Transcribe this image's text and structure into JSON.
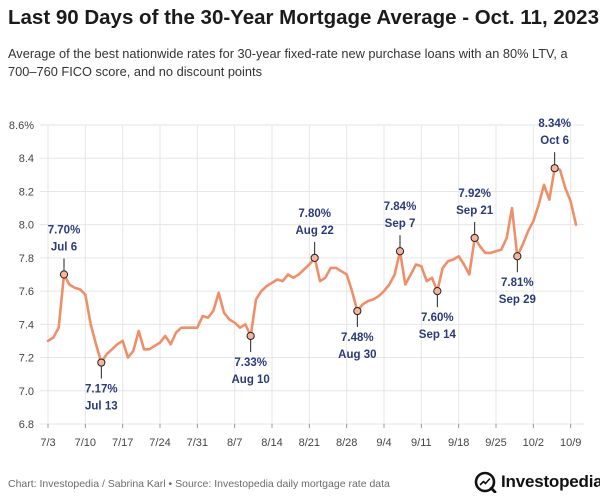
{
  "page": {
    "title": "Last 90 Days of the 30-Year Mortgage Average - Oct. 11, 2023",
    "subtitle": "Average of the best nationwide rates for 30-year fixed-rate new purchase loans with an 80% LTV, a 700–760 FICO score, and no discount points",
    "source": "Chart: Investopedia / Sabrina Karl • Source: Investopedia daily mortgage rate data",
    "brand": "Investopedia"
  },
  "colors": {
    "line": "#ef8f6a",
    "marker_fill": "#f4b59c",
    "label": "#2b3a7a",
    "grid": "#e6e6e6"
  },
  "chart_data": {
    "type": "line",
    "title": "Last 90 Days of the 30-Year Mortgage Average - Oct. 11, 2023",
    "xlabel": "",
    "ylabel": "",
    "xlim": [
      "2023-07-03",
      "2023-10-10"
    ],
    "ylim": [
      6.8,
      8.6
    ],
    "grid": true,
    "x_ticks": [
      "7/3",
      "7/10",
      "7/17",
      "7/24",
      "7/31",
      "8/7",
      "8/14",
      "8/21",
      "8/28",
      "9/4",
      "9/11",
      "9/18",
      "9/25",
      "10/2",
      "10/9"
    ],
    "y_ticks": [
      "6.8",
      "7.0",
      "7.2",
      "7.4",
      "7.6",
      "7.8",
      "8.0",
      "8.2",
      "8.4",
      "8.6%"
    ],
    "series": [
      {
        "x": [
          "2023-07-03",
          "2023-07-04",
          "2023-07-05",
          "2023-07-06",
          "2023-07-07",
          "2023-07-08",
          "2023-07-09",
          "2023-07-10",
          "2023-07-11",
          "2023-07-12",
          "2023-07-13",
          "2023-07-14",
          "2023-07-15",
          "2023-07-16",
          "2023-07-17",
          "2023-07-18",
          "2023-07-19",
          "2023-07-20",
          "2023-07-21",
          "2023-07-22",
          "2023-07-23",
          "2023-07-24",
          "2023-07-25",
          "2023-07-26",
          "2023-07-27",
          "2023-07-28",
          "2023-07-29",
          "2023-07-30",
          "2023-07-31",
          "2023-08-01",
          "2023-08-02",
          "2023-08-03",
          "2023-08-04",
          "2023-08-05",
          "2023-08-06",
          "2023-08-07",
          "2023-08-08",
          "2023-08-09",
          "2023-08-10",
          "2023-08-11",
          "2023-08-12",
          "2023-08-13",
          "2023-08-14",
          "2023-08-15",
          "2023-08-16",
          "2023-08-17",
          "2023-08-18",
          "2023-08-19",
          "2023-08-20",
          "2023-08-21",
          "2023-08-22",
          "2023-08-23",
          "2023-08-24",
          "2023-08-25",
          "2023-08-26",
          "2023-08-27",
          "2023-08-28",
          "2023-08-29",
          "2023-08-30",
          "2023-08-31",
          "2023-09-01",
          "2023-09-02",
          "2023-09-03",
          "2023-09-04",
          "2023-09-05",
          "2023-09-06",
          "2023-09-07",
          "2023-09-08",
          "2023-09-09",
          "2023-09-10",
          "2023-09-11",
          "2023-09-12",
          "2023-09-13",
          "2023-09-14",
          "2023-09-15",
          "2023-09-16",
          "2023-09-17",
          "2023-09-18",
          "2023-09-19",
          "2023-09-20",
          "2023-09-21",
          "2023-09-22",
          "2023-09-23",
          "2023-09-24",
          "2023-09-25",
          "2023-09-26",
          "2023-09-27",
          "2023-09-28",
          "2023-09-29",
          "2023-09-30",
          "2023-10-01",
          "2023-10-02",
          "2023-10-03",
          "2023-10-04",
          "2023-10-05",
          "2023-10-06",
          "2023-10-07",
          "2023-10-08",
          "2023-10-09",
          "2023-10-10"
        ],
        "values": [
          7.3,
          7.32,
          7.38,
          7.7,
          7.64,
          7.62,
          7.61,
          7.58,
          7.4,
          7.28,
          7.17,
          7.22,
          7.25,
          7.28,
          7.3,
          7.2,
          7.24,
          7.36,
          7.25,
          7.25,
          7.27,
          7.29,
          7.33,
          7.28,
          7.35,
          7.38,
          7.38,
          7.38,
          7.38,
          7.45,
          7.44,
          7.48,
          7.59,
          7.47,
          7.43,
          7.41,
          7.38,
          7.4,
          7.33,
          7.55,
          7.6,
          7.63,
          7.65,
          7.67,
          7.66,
          7.7,
          7.68,
          7.7,
          7.73,
          7.76,
          7.8,
          7.66,
          7.68,
          7.74,
          7.74,
          7.72,
          7.7,
          7.6,
          7.48,
          7.52,
          7.54,
          7.55,
          7.57,
          7.6,
          7.64,
          7.7,
          7.84,
          7.64,
          7.7,
          7.76,
          7.75,
          7.66,
          7.68,
          7.6,
          7.74,
          7.78,
          7.79,
          7.81,
          7.76,
          7.7,
          7.92,
          7.87,
          7.83,
          7.83,
          7.84,
          7.85,
          7.92,
          8.1,
          7.81,
          7.88,
          7.96,
          8.02,
          8.12,
          8.24,
          8.15,
          8.34,
          8.33,
          8.22,
          8.14,
          8.0
        ]
      }
    ],
    "annotations": [
      {
        "date": "2023-07-06",
        "value": 7.7,
        "text": "7.70%",
        "date_label": "Jul 6",
        "position": "above"
      },
      {
        "date": "2023-07-13",
        "value": 7.17,
        "text": "7.17%",
        "date_label": "Jul 13",
        "position": "below"
      },
      {
        "date": "2023-08-10",
        "value": 7.33,
        "text": "7.33%",
        "date_label": "Aug 10",
        "position": "below"
      },
      {
        "date": "2023-08-22",
        "value": 7.8,
        "text": "7.80%",
        "date_label": "Aug 22",
        "position": "above"
      },
      {
        "date": "2023-08-30",
        "value": 7.48,
        "text": "7.48%",
        "date_label": "Aug 30",
        "position": "below"
      },
      {
        "date": "2023-09-07",
        "value": 7.84,
        "text": "7.84%",
        "date_label": "Sep 7",
        "position": "above"
      },
      {
        "date": "2023-09-14",
        "value": 7.6,
        "text": "7.60%",
        "date_label": "Sep 14",
        "position": "below"
      },
      {
        "date": "2023-09-21",
        "value": 7.92,
        "text": "7.92%",
        "date_label": "Sep 21",
        "position": "above"
      },
      {
        "date": "2023-09-29",
        "value": 7.81,
        "text": "7.81%",
        "date_label": "Sep 29",
        "position": "below"
      },
      {
        "date": "2023-10-06",
        "value": 8.34,
        "text": "8.34%",
        "date_label": "Oct 6",
        "position": "above"
      }
    ]
  }
}
